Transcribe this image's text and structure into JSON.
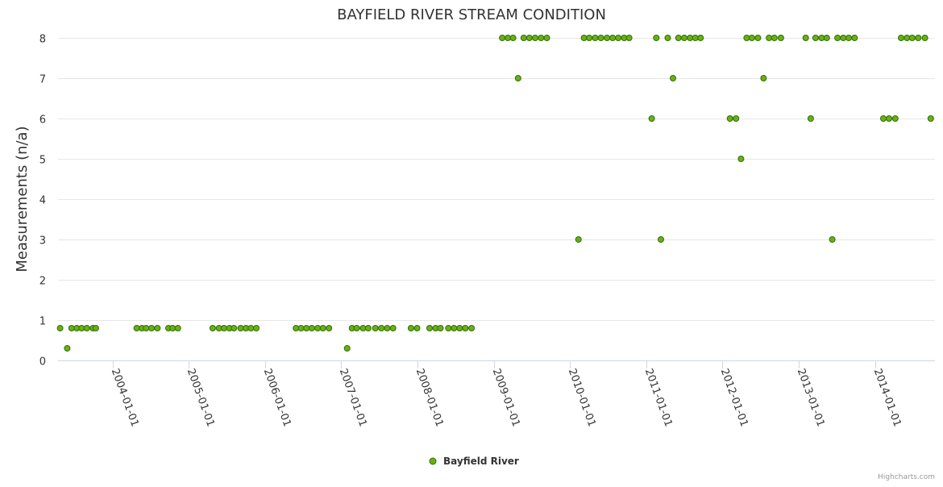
{
  "chart_data": {
    "type": "scatter",
    "title": "BAYFIELD RIVER STREAM CONDITION",
    "ylabel": "Measurements (n/a)",
    "xlabel": "",
    "ylim": [
      0,
      8
    ],
    "yticks": [
      0,
      1,
      2,
      3,
      4,
      5,
      6,
      7,
      8
    ],
    "xticks": [
      "2004-01-01",
      "2005-01-01",
      "2006-01-01",
      "2007-01-01",
      "2008-01-01",
      "2009-01-01",
      "2010-01-01",
      "2011-01-01",
      "2012-01-01",
      "2013-01-01",
      "2014-01-01"
    ],
    "xlim": [
      "2003-04-15",
      "2014-10-15"
    ],
    "grid": true,
    "legend_position": "bottom-center",
    "series": [
      {
        "name": "Bayfield River",
        "color": "#6ab014",
        "points": [
          [
            "2003-04-25",
            0.8
          ],
          [
            "2003-05-29",
            0.3
          ],
          [
            "2003-06-19",
            0.8
          ],
          [
            "2003-07-14",
            0.8
          ],
          [
            "2003-08-06",
            0.8
          ],
          [
            "2003-08-31",
            0.8
          ],
          [
            "2003-09-29",
            0.8
          ],
          [
            "2003-10-13",
            0.8
          ],
          [
            "2004-04-26",
            0.8
          ],
          [
            "2004-05-21",
            0.8
          ],
          [
            "2004-06-10",
            0.8
          ],
          [
            "2004-07-06",
            0.8
          ],
          [
            "2004-08-03",
            0.8
          ],
          [
            "2004-09-25",
            0.8
          ],
          [
            "2004-10-15",
            0.8
          ],
          [
            "2004-11-09",
            0.8
          ],
          [
            "2005-04-25",
            0.8
          ],
          [
            "2005-05-25",
            0.8
          ],
          [
            "2005-06-18",
            0.8
          ],
          [
            "2005-07-14",
            0.8
          ],
          [
            "2005-08-05",
            0.8
          ],
          [
            "2005-09-06",
            0.8
          ],
          [
            "2005-10-01",
            0.8
          ],
          [
            "2005-10-25",
            0.8
          ],
          [
            "2005-11-20",
            0.8
          ],
          [
            "2006-05-29",
            0.8
          ],
          [
            "2006-06-22",
            0.8
          ],
          [
            "2006-07-18",
            0.8
          ],
          [
            "2006-08-13",
            0.8
          ],
          [
            "2006-09-10",
            0.8
          ],
          [
            "2006-10-05",
            0.8
          ],
          [
            "2006-11-03",
            0.8
          ],
          [
            "2007-01-29",
            0.3
          ],
          [
            "2007-02-21",
            0.8
          ],
          [
            "2007-03-16",
            0.8
          ],
          [
            "2007-04-15",
            0.8
          ],
          [
            "2007-05-10",
            0.8
          ],
          [
            "2007-06-13",
            0.8
          ],
          [
            "2007-07-12",
            0.8
          ],
          [
            "2007-08-09",
            0.8
          ],
          [
            "2007-09-06",
            0.8
          ],
          [
            "2007-12-01",
            0.8
          ],
          [
            "2007-12-30",
            0.8
          ],
          [
            "2008-02-28",
            0.8
          ],
          [
            "2008-03-28",
            0.8
          ],
          [
            "2008-04-20",
            0.8
          ],
          [
            "2008-05-28",
            0.8
          ],
          [
            "2008-06-24",
            0.8
          ],
          [
            "2008-07-21",
            0.8
          ],
          [
            "2008-08-17",
            0.8
          ],
          [
            "2008-09-16",
            0.8
          ],
          [
            "2009-02-10",
            8
          ],
          [
            "2009-03-09",
            8
          ],
          [
            "2009-04-03",
            8
          ],
          [
            "2009-04-27",
            7
          ],
          [
            "2009-05-24",
            8
          ],
          [
            "2009-06-20",
            8
          ],
          [
            "2009-07-18",
            8
          ],
          [
            "2009-08-15",
            8
          ],
          [
            "2009-09-12",
            8
          ],
          [
            "2010-02-10",
            3
          ],
          [
            "2010-03-09",
            8
          ],
          [
            "2010-04-03",
            8
          ],
          [
            "2010-05-01",
            8
          ],
          [
            "2010-05-29",
            8
          ],
          [
            "2010-06-27",
            8
          ],
          [
            "2010-07-24",
            8
          ],
          [
            "2010-08-20",
            8
          ],
          [
            "2010-09-17",
            8
          ],
          [
            "2010-10-11",
            8
          ],
          [
            "2011-01-27",
            6
          ],
          [
            "2011-02-18",
            8
          ],
          [
            "2011-03-12",
            3
          ],
          [
            "2011-04-14",
            8
          ],
          [
            "2011-05-09",
            7
          ],
          [
            "2011-06-04",
            8
          ],
          [
            "2011-07-02",
            8
          ],
          [
            "2011-07-30",
            8
          ],
          [
            "2011-08-24",
            8
          ],
          [
            "2011-09-18",
            8
          ],
          [
            "2012-02-06",
            6
          ],
          [
            "2012-03-06",
            6
          ],
          [
            "2012-03-30",
            5
          ],
          [
            "2012-04-26",
            8
          ],
          [
            "2012-05-21",
            8
          ],
          [
            "2012-06-19",
            8
          ],
          [
            "2012-07-16",
            7
          ],
          [
            "2012-08-11",
            8
          ],
          [
            "2012-09-06",
            8
          ],
          [
            "2012-10-07",
            8
          ],
          [
            "2013-02-03",
            8
          ],
          [
            "2013-02-27",
            6
          ],
          [
            "2013-03-22",
            8
          ],
          [
            "2013-04-20",
            8
          ],
          [
            "2013-05-15",
            8
          ],
          [
            "2013-06-10",
            3
          ],
          [
            "2013-07-05",
            8
          ],
          [
            "2013-08-02",
            8
          ],
          [
            "2013-08-28",
            8
          ],
          [
            "2013-09-25",
            8
          ],
          [
            "2014-02-10",
            6
          ],
          [
            "2014-03-09",
            6
          ],
          [
            "2014-04-08",
            6
          ],
          [
            "2014-05-06",
            8
          ],
          [
            "2014-06-03",
            8
          ],
          [
            "2014-06-28",
            8
          ],
          [
            "2014-07-27",
            8
          ],
          [
            "2014-08-28",
            8
          ],
          [
            "2014-09-25",
            6
          ]
        ]
      }
    ],
    "credits": "Highcharts.com"
  }
}
